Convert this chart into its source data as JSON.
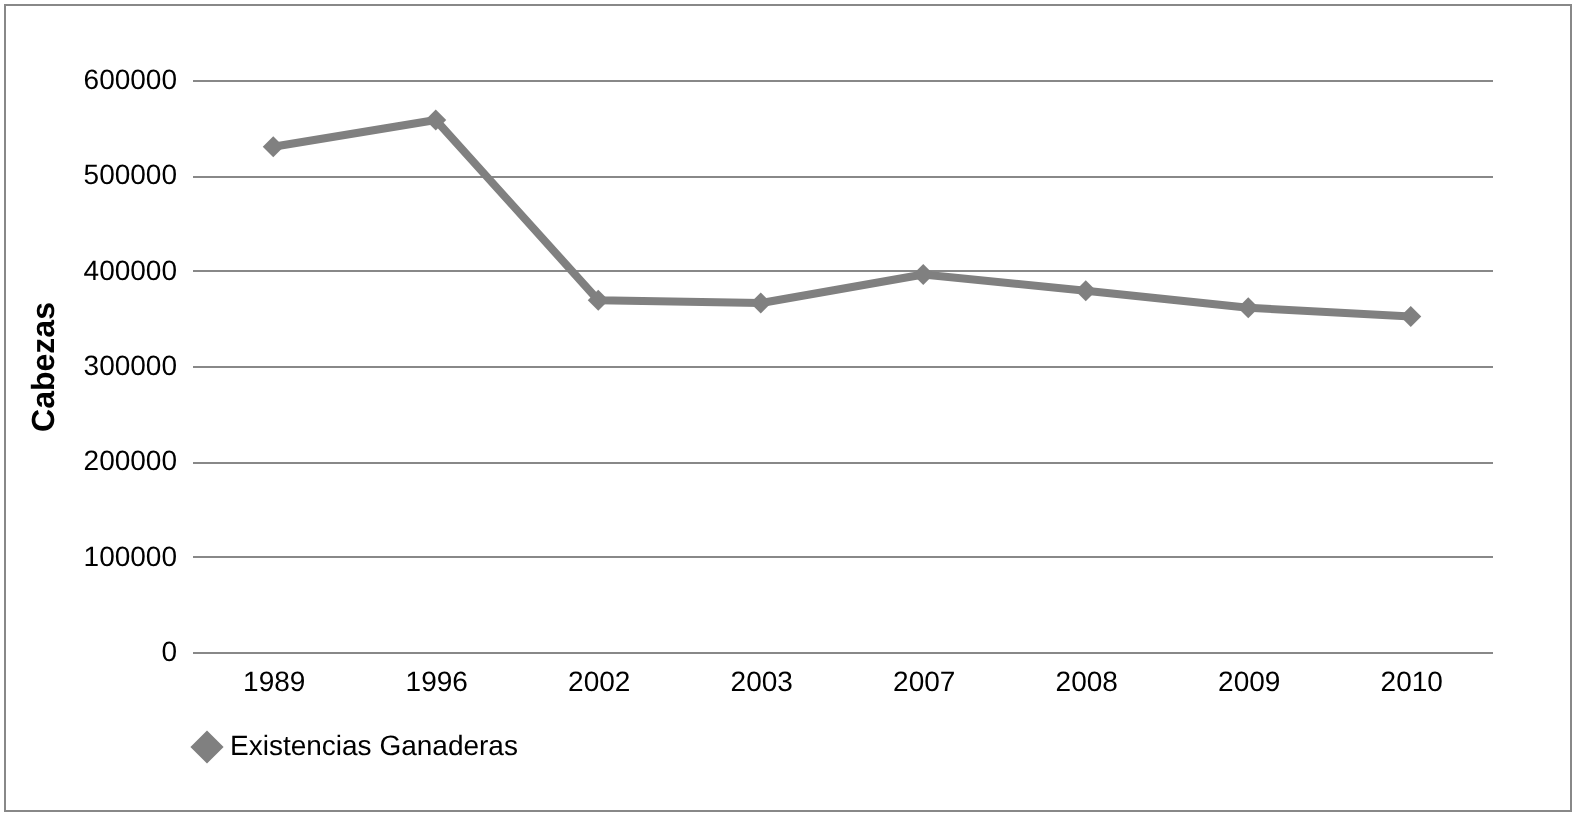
{
  "chart_data": {
    "type": "line",
    "ylabel": "Cabezas",
    "categories": [
      "1989",
      "1996",
      "2002",
      "2003",
      "2007",
      "2008",
      "2009",
      "2010"
    ],
    "series": [
      {
        "name": "Existencias Ganaderas",
        "color": "#808080",
        "values": [
          530000,
          558000,
          369000,
          366000,
          396000,
          379000,
          361000,
          352000
        ]
      }
    ],
    "ylim": [
      0,
      600000
    ],
    "yticks": [
      0,
      100000,
      200000,
      300000,
      400000,
      500000,
      600000
    ],
    "grid": "y",
    "legend": "bottom",
    "marker": "diamond",
    "line_style": "solid"
  }
}
